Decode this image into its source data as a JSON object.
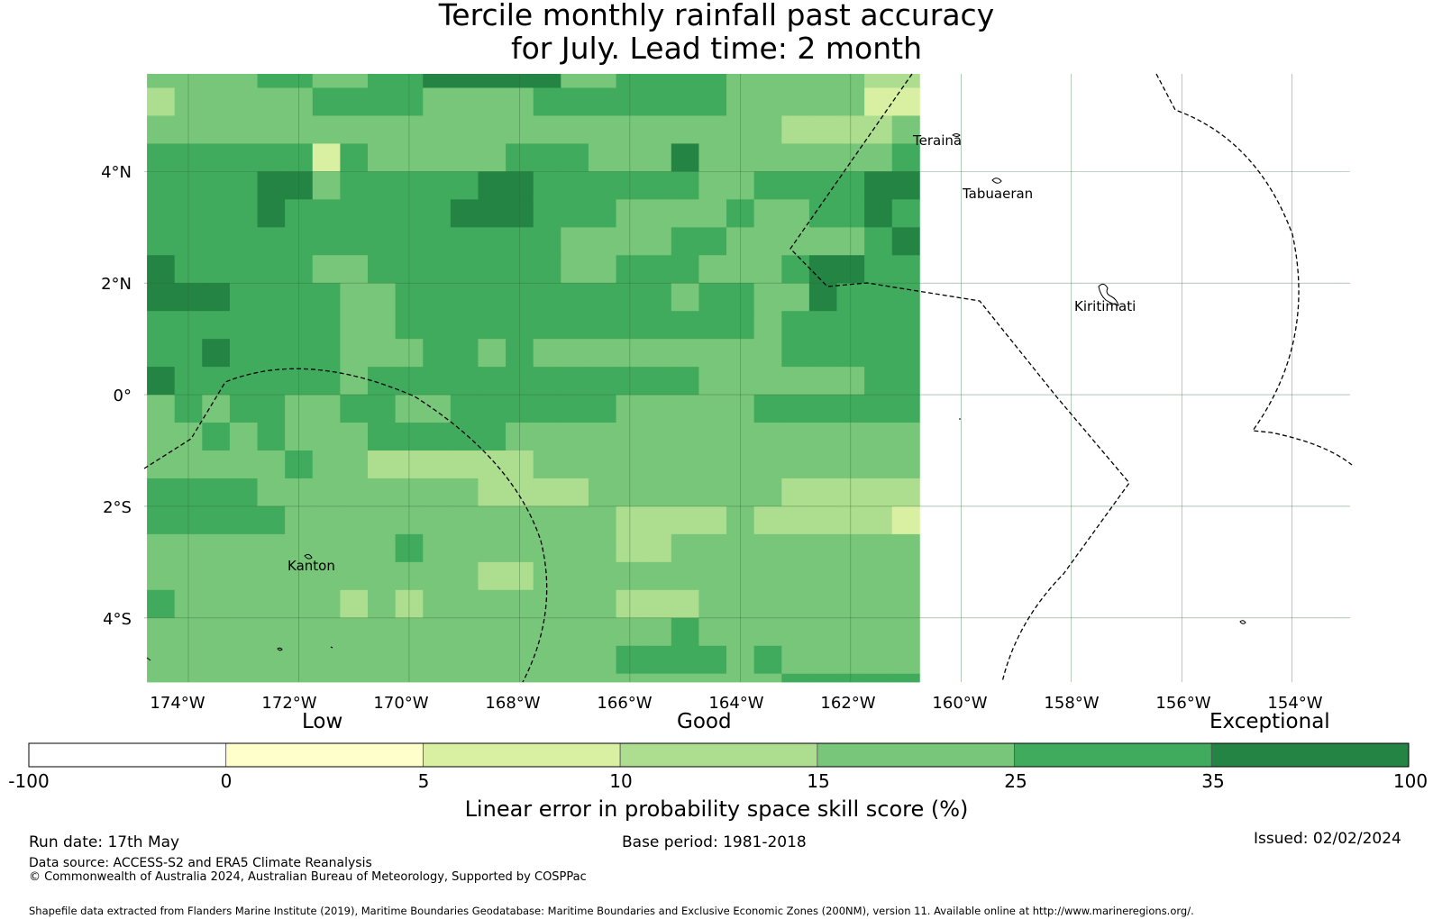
{
  "title_line1": "Tercile monthly rainfall past accuracy",
  "title_line2": "for July. Lead time: 2 month",
  "map": {
    "lat_labels": [
      "4°N",
      "2°N",
      "0°",
      "2°S",
      "4°S"
    ],
    "lon_labels": [
      "174°W",
      "172°W",
      "170°W",
      "168°W",
      "166°W",
      "164°W",
      "162°W",
      "160°W",
      "158°W",
      "156°W",
      "154°W"
    ],
    "places": [
      "Teraina",
      "Tabuaeran",
      "Kiritimati",
      "Kanton"
    ],
    "grid_row_lat_start": 5.75,
    "grid_col_lon_start": -174.5,
    "grid_cell_degrees": 0.5,
    "grid": [
      "4444554455666664455554444433",
      "3444445555444455555554444422",
      "4444444444444444444444433334",
      "5555552544444555444644444445",
      "5555664555556655555544555566",
      "5555655555566655544445445565",
      "5555555555555554444554444456",
      "6555554455555554455544456655",
      "6665555445555555555455446555",
      "5555555445555555555555455555",
      "5565555444554544444444455555",
      "6555555455555555555544444455",
      "4545544554455555544444555555",
      "4454544455555444444444444444",
      "4444454433333344444444444444",
      "5555444444443333444444433333",
      "5555544444444444433334333332",
      "4444444445444444433444444444",
      "4444444444443344444444444444",
      "5444444343444444433344444444",
      "4444444444444444444544444444",
      "4444444444444444455554544444",
      "4444444444444444444444455555"
    ]
  },
  "colorbar": {
    "quality_words": [
      "Low",
      "Good",
      "Exceptional"
    ],
    "ticks": [
      "-100",
      "0",
      "5",
      "10",
      "15",
      "25",
      "35",
      "100"
    ],
    "colors": [
      "#ffffff",
      "#ffffcc",
      "#d9f0a3",
      "#addd8e",
      "#78c679",
      "#41ab5d",
      "#238443"
    ],
    "label": "Linear error in probability space skill score (%)"
  },
  "footer": {
    "run_date": "Run date: 17th May",
    "base_period": "Base period: 1981-2018",
    "issued": "Issued: 02/02/2024",
    "data_source": "Data source: ACCESS-S2 and ERA5 Climate Reanalysis",
    "copyright": "© Commonwealth of Australia 2024, Australian Bureau of Meteorology, Supported by COSPPac",
    "shapefile": "Shapefile data extracted from Flanders Marine Institute (2019), Maritime Boundaries Geodatabase: Maritime Boundaries and Exclusive Economic Zones (200NM), version 11. Available online at http://www.marineregions.org/."
  }
}
